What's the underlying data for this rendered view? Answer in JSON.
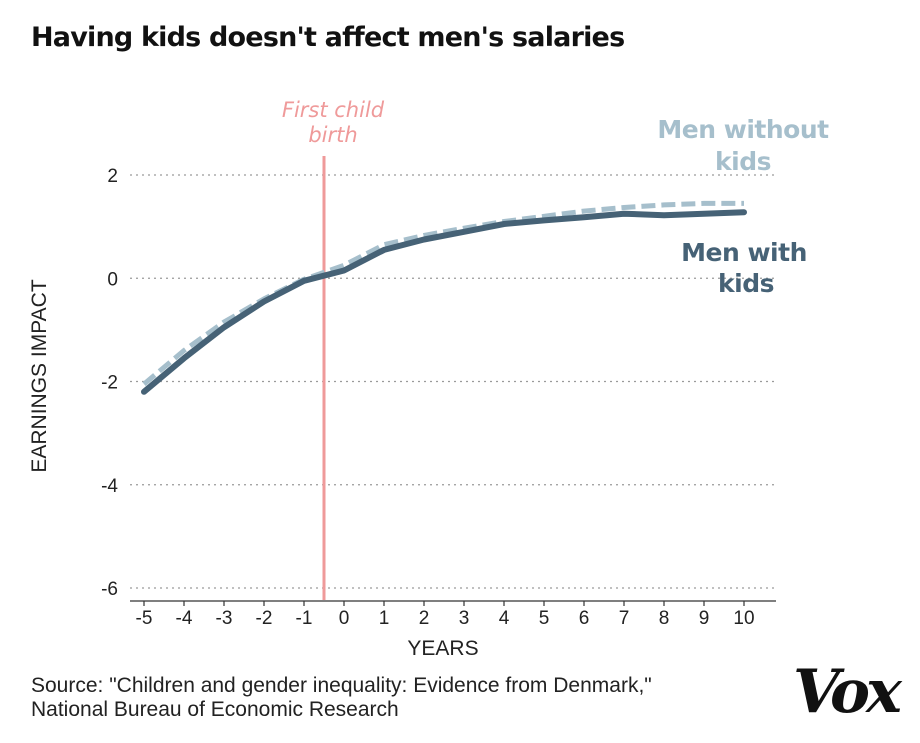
{
  "title": "Having kids doesn't affect men's salaries",
  "source_line1": "Source: \"Children and gender inequality: Evidence from Denmark,\"",
  "source_line2": "National Bureau of Economic Research",
  "logo": "Vox",
  "colors": {
    "with_kids": "#466276",
    "without_kids": "#a6bfcc",
    "event_line": "#ef9a9a",
    "grid": "#9a9a9a"
  },
  "chart_data": {
    "type": "line",
    "xlabel": "YEARS",
    "ylabel": "EARNINGS IMPACT",
    "xlim": [
      -5,
      10
    ],
    "ylim": [
      -6,
      2
    ],
    "x_ticks": [
      -5,
      -4,
      -3,
      -2,
      -1,
      0,
      1,
      2,
      3,
      4,
      5,
      6,
      7,
      8,
      9,
      10
    ],
    "y_ticks": [
      2,
      0,
      -2,
      -4,
      -6
    ],
    "grid": "horizontal dotted",
    "series": [
      {
        "name": "Men without kids",
        "style": "dashed",
        "color": "#a6bfcc",
        "x": [
          -5,
          -4,
          -3,
          -2,
          -1,
          0,
          1,
          2,
          3,
          4,
          5,
          6,
          7,
          8,
          9,
          10
        ],
        "y": [
          -2.05,
          -1.4,
          -0.85,
          -0.4,
          -0.02,
          0.25,
          0.65,
          0.83,
          0.97,
          1.1,
          1.2,
          1.3,
          1.37,
          1.42,
          1.45,
          1.45
        ]
      },
      {
        "name": "Men with kids",
        "style": "solid",
        "color": "#466276",
        "x": [
          -5,
          -4,
          -3,
          -2,
          -1,
          0,
          1,
          2,
          3,
          4,
          5,
          6,
          7,
          8,
          9,
          10
        ],
        "y": [
          -2.2,
          -1.55,
          -0.95,
          -0.45,
          -0.05,
          0.15,
          0.55,
          0.75,
          0.9,
          1.05,
          1.12,
          1.18,
          1.25,
          1.22,
          1.25,
          1.28
        ]
      }
    ],
    "event": {
      "x": -0.5,
      "label_line1": "First child",
      "label_line2": "birth"
    },
    "series_labels": {
      "without_kids_line1": "Men without",
      "without_kids_line2": "kids",
      "with_kids_line1": "Men with",
      "with_kids_line2": "kids"
    }
  }
}
